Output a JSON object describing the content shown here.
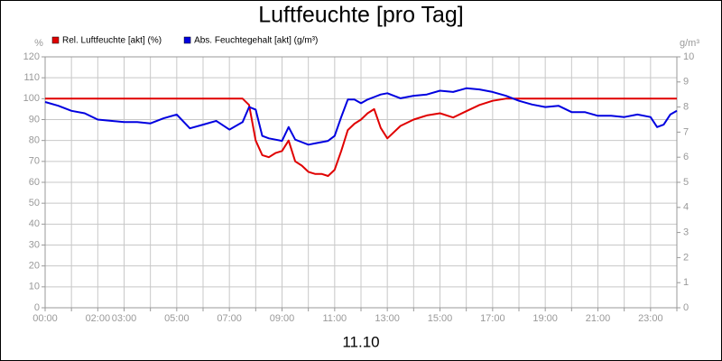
{
  "chart_data": {
    "type": "line",
    "title": "Luftfeuchte [pro Tag]",
    "xlabel": "11.10",
    "ylabel": "%",
    "y2label": "g/m³",
    "grid": true,
    "x": [
      0,
      0.5,
      1,
      1.5,
      2,
      2.5,
      3,
      3.5,
      4,
      4.5,
      5,
      5.5,
      6,
      6.5,
      7,
      7.5,
      7.75,
      8,
      8.25,
      8.5,
      8.75,
      9,
      9.25,
      9.5,
      9.75,
      10,
      10.25,
      10.5,
      10.75,
      11,
      11.25,
      11.5,
      11.75,
      12,
      12.25,
      12.5,
      12.75,
      13,
      13.5,
      14,
      14.5,
      15,
      15.5,
      16,
      16.5,
      17,
      17.5,
      18,
      18.5,
      19,
      19.5,
      20,
      20.5,
      21,
      21.5,
      22,
      22.5,
      23,
      23.25,
      23.5,
      23.75,
      24
    ],
    "xlim": [
      0,
      24
    ],
    "xticks": [
      {
        "value": 0,
        "label": "00:00"
      },
      {
        "value": 1,
        "label": null
      },
      {
        "value": 2,
        "label": "02:00"
      },
      {
        "value": 3,
        "label": "03:00"
      },
      {
        "value": 4,
        "label": null
      },
      {
        "value": 5,
        "label": "05:00"
      },
      {
        "value": 6,
        "label": null
      },
      {
        "value": 7,
        "label": "07:00"
      },
      {
        "value": 8,
        "label": null
      },
      {
        "value": 9,
        "label": "09:00"
      },
      {
        "value": 10,
        "label": null
      },
      {
        "value": 11,
        "label": "11:00"
      },
      {
        "value": 12,
        "label": null
      },
      {
        "value": 13,
        "label": "13:00"
      },
      {
        "value": 14,
        "label": null
      },
      {
        "value": 15,
        "label": "15:00"
      },
      {
        "value": 16,
        "label": null
      },
      {
        "value": 17,
        "label": "17:00"
      },
      {
        "value": 18,
        "label": null
      },
      {
        "value": 19,
        "label": "19:00"
      },
      {
        "value": 20,
        "label": null
      },
      {
        "value": 21,
        "label": "21:00"
      },
      {
        "value": 22,
        "label": null
      },
      {
        "value": 23,
        "label": "23:00"
      },
      {
        "value": 24,
        "label": null
      }
    ],
    "ylim": [
      0,
      120
    ],
    "yticks": [
      0,
      10,
      20,
      30,
      40,
      50,
      60,
      70,
      80,
      90,
      100,
      110,
      120
    ],
    "y2lim": [
      0,
      10
    ],
    "y2ticks": [
      0,
      1,
      2,
      3,
      4,
      5,
      6,
      7,
      8,
      9,
      10
    ],
    "series": [
      {
        "name": "Rel. Luftfeuchte [akt] (%)",
        "color": "#e00000",
        "values": [
          100,
          100,
          100,
          100,
          100,
          100,
          100,
          100,
          100,
          100,
          100,
          100,
          100,
          100,
          100,
          100,
          97,
          80,
          73,
          72,
          74,
          75,
          80,
          70,
          68,
          65,
          64,
          64,
          63,
          66,
          75,
          85,
          88,
          90,
          93,
          95,
          86,
          81,
          87,
          90,
          92,
          93,
          91,
          94,
          97,
          99,
          100,
          100,
          100,
          100,
          100,
          100,
          100,
          100,
          100,
          100,
          100,
          100,
          100,
          100,
          100,
          100
        ]
      },
      {
        "name": "Abs. Feuchtegehalt [akt] (g/m³)",
        "color": "#0000e0",
        "axis": "y2",
        "values": [
          8.2,
          8.05,
          7.85,
          7.75,
          7.5,
          7.45,
          7.4,
          7.4,
          7.35,
          7.55,
          7.7,
          7.15,
          7.3,
          7.45,
          7.1,
          7.4,
          8.0,
          7.9,
          6.85,
          6.75,
          6.7,
          6.65,
          7.2,
          6.7,
          6.6,
          6.5,
          6.55,
          6.6,
          6.65,
          6.85,
          7.6,
          8.3,
          8.3,
          8.15,
          8.3,
          8.4,
          8.5,
          8.55,
          8.35,
          8.45,
          8.5,
          8.65,
          8.6,
          8.75,
          8.7,
          8.6,
          8.45,
          8.25,
          8.1,
          8.0,
          8.05,
          7.8,
          7.8,
          7.65,
          7.65,
          7.6,
          7.7,
          7.6,
          7.2,
          7.3,
          7.7,
          7.85
        ]
      }
    ]
  }
}
